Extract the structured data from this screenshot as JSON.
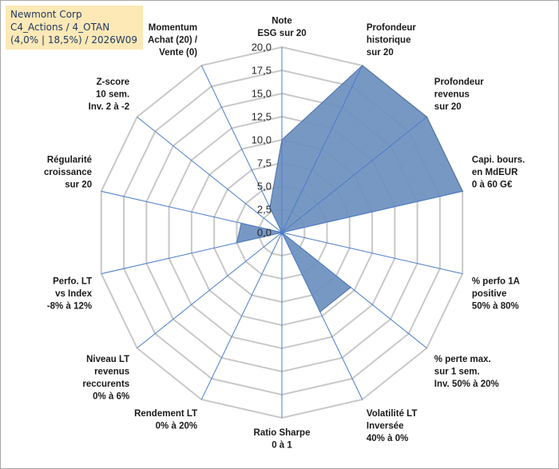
{
  "header": {
    "company": "Newmont Corp",
    "portfolio": "C4_Actions / 4_OTAN",
    "stats": "(4,0% | 18,5%) / 2026W09"
  },
  "chart_data": {
    "type": "radar",
    "title": "Newmont Corp",
    "rmax": 20,
    "ticks": [
      "0,0",
      "2,5",
      "5,0",
      "7,5",
      "10,0",
      "12,5",
      "15,0",
      "17,5",
      "20,0"
    ],
    "tick_values": [
      0,
      2.5,
      5,
      7.5,
      10,
      12.5,
      15,
      17.5,
      20
    ],
    "colors": {
      "fill": "#6e90c0",
      "stroke": "#4a6fa5",
      "grid": "#c8c8c8",
      "spoke": "#4a7cc8"
    },
    "axes": [
      {
        "lines": [
          "Note",
          "ESG sur 20"
        ],
        "value": 10.0
      },
      {
        "lines": [
          "Profondeur",
          "historique",
          "sur 20"
        ],
        "value": 20.0
      },
      {
        "lines": [
          "Profondeur",
          "revenus",
          "sur 20"
        ],
        "value": 20.0
      },
      {
        "lines": [
          "Capi. bours.",
          "en MdEUR",
          "0 à 60 G€"
        ],
        "value": 20.0
      },
      {
        "lines": [
          "% perfo 1A",
          "positive",
          "50% à 80%"
        ],
        "value": 0.0
      },
      {
        "lines": [
          "% perte max.",
          "sur 1 sem.",
          "Inv. 50% à 20%"
        ],
        "value": 9.5
      },
      {
        "lines": [
          "Volatilité LT",
          "Inversée",
          "40% à 0%"
        ],
        "value": 9.5
      },
      {
        "lines": [
          "Ratio Sharpe",
          "0 à 1"
        ],
        "value": 0.0
      },
      {
        "lines": [
          "Rendement LT",
          "0% à 20%"
        ],
        "value": 0.0
      },
      {
        "lines": [
          "Niveau LT",
          "revenus",
          "reccurents",
          "0% à 6%"
        ],
        "value": 0.0
      },
      {
        "lines": [
          "Perfo. LT",
          "vs Index",
          "-8% à 12%"
        ],
        "value": 5.0
      },
      {
        "lines": [
          "Régularité",
          "croissance",
          "sur 20"
        ],
        "value": 4.5
      },
      {
        "lines": [
          "Z-score",
          "10 sem.",
          "Inv. 2 à -2"
        ],
        "value": 0.0
      },
      {
        "lines": [
          "Momentum",
          "Achat (20) /",
          "Vente (0)"
        ],
        "value": 3.0
      }
    ]
  }
}
